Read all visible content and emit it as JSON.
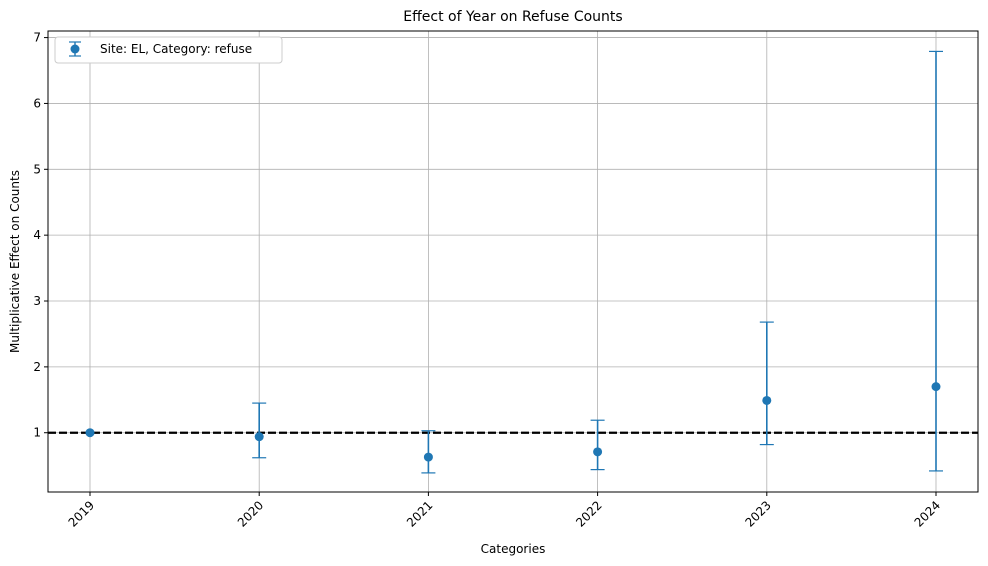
{
  "chart_data": {
    "type": "scatter",
    "title": "Effect of Year on Refuse Counts",
    "xlabel": "Categories",
    "ylabel": "Multiplicative Effect on Counts",
    "categories": [
      "2019",
      "2020",
      "2021",
      "2022",
      "2023",
      "2024"
    ],
    "series": [
      {
        "name": "Site: EL, Category: refuse",
        "values": [
          1.0,
          0.94,
          0.63,
          0.71,
          1.49,
          1.7
        ],
        "ci_lower": [
          1.0,
          0.62,
          0.39,
          0.44,
          0.82,
          0.42
        ],
        "ci_upper": [
          1.0,
          1.45,
          1.03,
          1.19,
          2.68,
          6.79
        ],
        "color": "#1f77b4"
      }
    ],
    "reference_line": {
      "y": 1,
      "style": "dashed",
      "color": "#000000"
    },
    "yticks": [
      1,
      2,
      3,
      4,
      5,
      6,
      7
    ],
    "ylim": [
      0.1,
      7.1
    ],
    "grid": true,
    "legend_position": "top-left",
    "xtick_rotation": 45
  }
}
